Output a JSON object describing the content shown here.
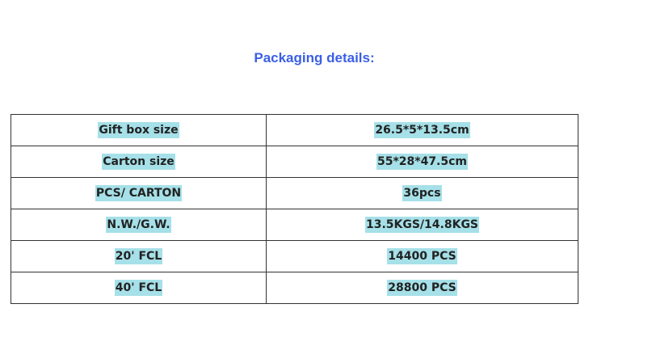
{
  "title": "Packaging details:",
  "colors": {
    "title": "#3a5fe5",
    "highlight": "#a6e0e8"
  },
  "rows": [
    {
      "label": "Gift box size",
      "value": "26.5*5*13.5cm"
    },
    {
      "label": "Carton size",
      "value": "55*28*47.5cm"
    },
    {
      "label": "PCS/ CARTON",
      "value": "36pcs"
    },
    {
      "label": "N.W./G.W.",
      "value": "13.5KGS/14.8KGS"
    },
    {
      "label": "20' FCL",
      "value": "14400 PCS"
    },
    {
      "label": "40' FCL",
      "value": "28800 PCS"
    }
  ]
}
